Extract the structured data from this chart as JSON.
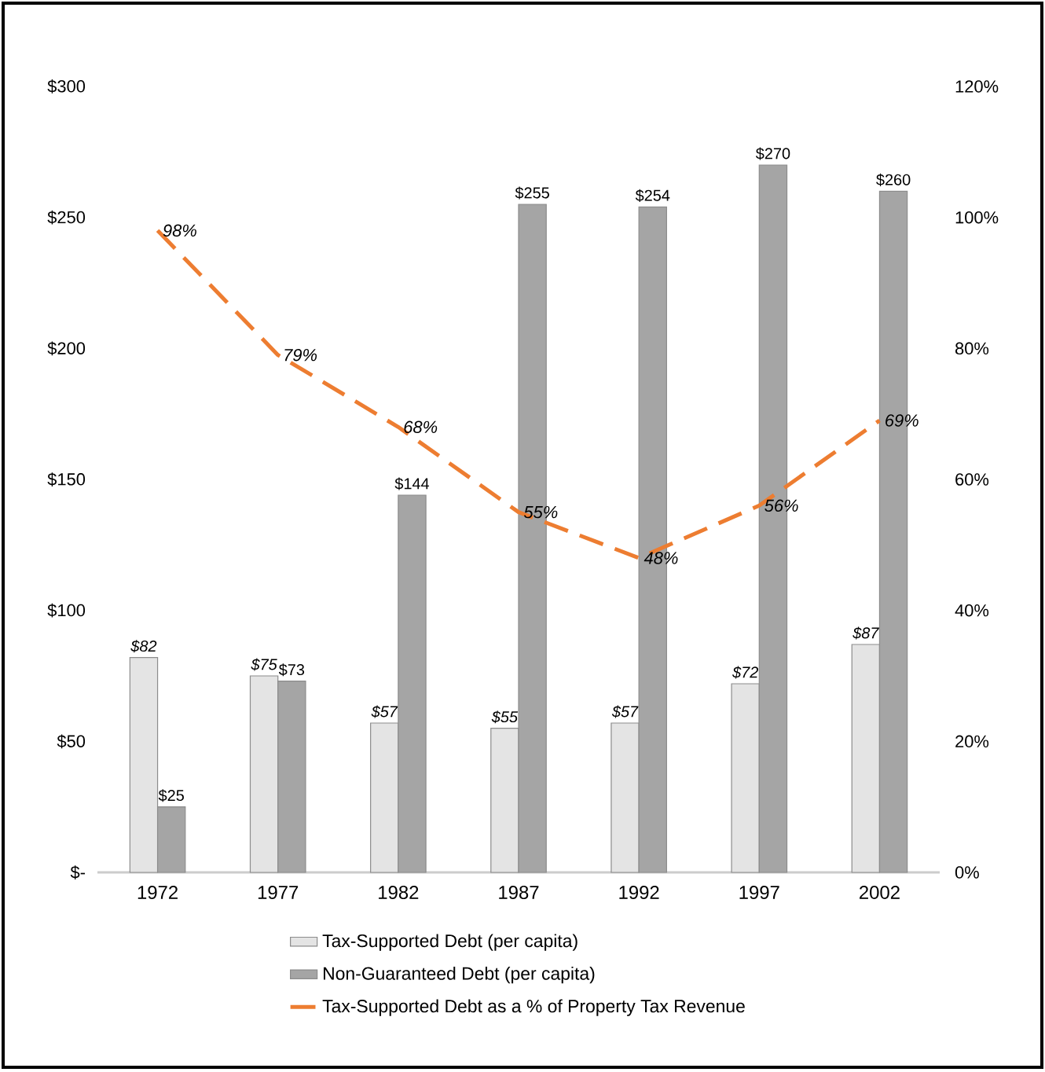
{
  "chart_data": {
    "type": "bar",
    "categories": [
      "1972",
      "1977",
      "1982",
      "1987",
      "1992",
      "1997",
      "2002"
    ],
    "series": [
      {
        "name": "Tax-Supported Debt (per capita)",
        "color": "#e4e4e4",
        "values": [
          82,
          75,
          57,
          55,
          57,
          72,
          87
        ],
        "value_labels": [
          "$82",
          "$75",
          "$57",
          "$55",
          "$57",
          "$72",
          "$87"
        ]
      },
      {
        "name": "Non-Guaranteed Debt (per capita)",
        "color": "#a5a5a5",
        "values": [
          25,
          73,
          144,
          255,
          254,
          270,
          260
        ],
        "value_labels": [
          "$25",
          "$73",
          "$144",
          "$255",
          "$254",
          "$270",
          "$260"
        ]
      },
      {
        "name": "Tax-Supported Debt as a % of Property Tax Revenue",
        "type": "line",
        "axis": "y2",
        "line_style": "dashed",
        "color": "#ed7d31",
        "values": [
          98,
          79,
          68,
          55,
          48,
          56,
          69
        ],
        "value_labels": [
          "98%",
          "79%",
          "68%",
          "55%",
          "48%",
          "56%",
          "69%"
        ]
      }
    ],
    "ylim": [
      0,
      300
    ],
    "yticks": [
      {
        "value": 0,
        "label": "$-"
      },
      {
        "value": 50,
        "label": "$50"
      },
      {
        "value": 100,
        "label": "$100"
      },
      {
        "value": 150,
        "label": "$150"
      },
      {
        "value": 200,
        "label": "$200"
      },
      {
        "value": 250,
        "label": "$250"
      },
      {
        "value": 300,
        "label": "$300"
      }
    ],
    "y2lim": [
      0,
      120
    ],
    "y2ticks": [
      {
        "value": 0,
        "label": "0%"
      },
      {
        "value": 20,
        "label": "20%"
      },
      {
        "value": 40,
        "label": "40%"
      },
      {
        "value": 60,
        "label": "60%"
      },
      {
        "value": 80,
        "label": "80%"
      },
      {
        "value": 100,
        "label": "100%"
      },
      {
        "value": 120,
        "label": "120%"
      }
    ],
    "legend": "bottom"
  }
}
